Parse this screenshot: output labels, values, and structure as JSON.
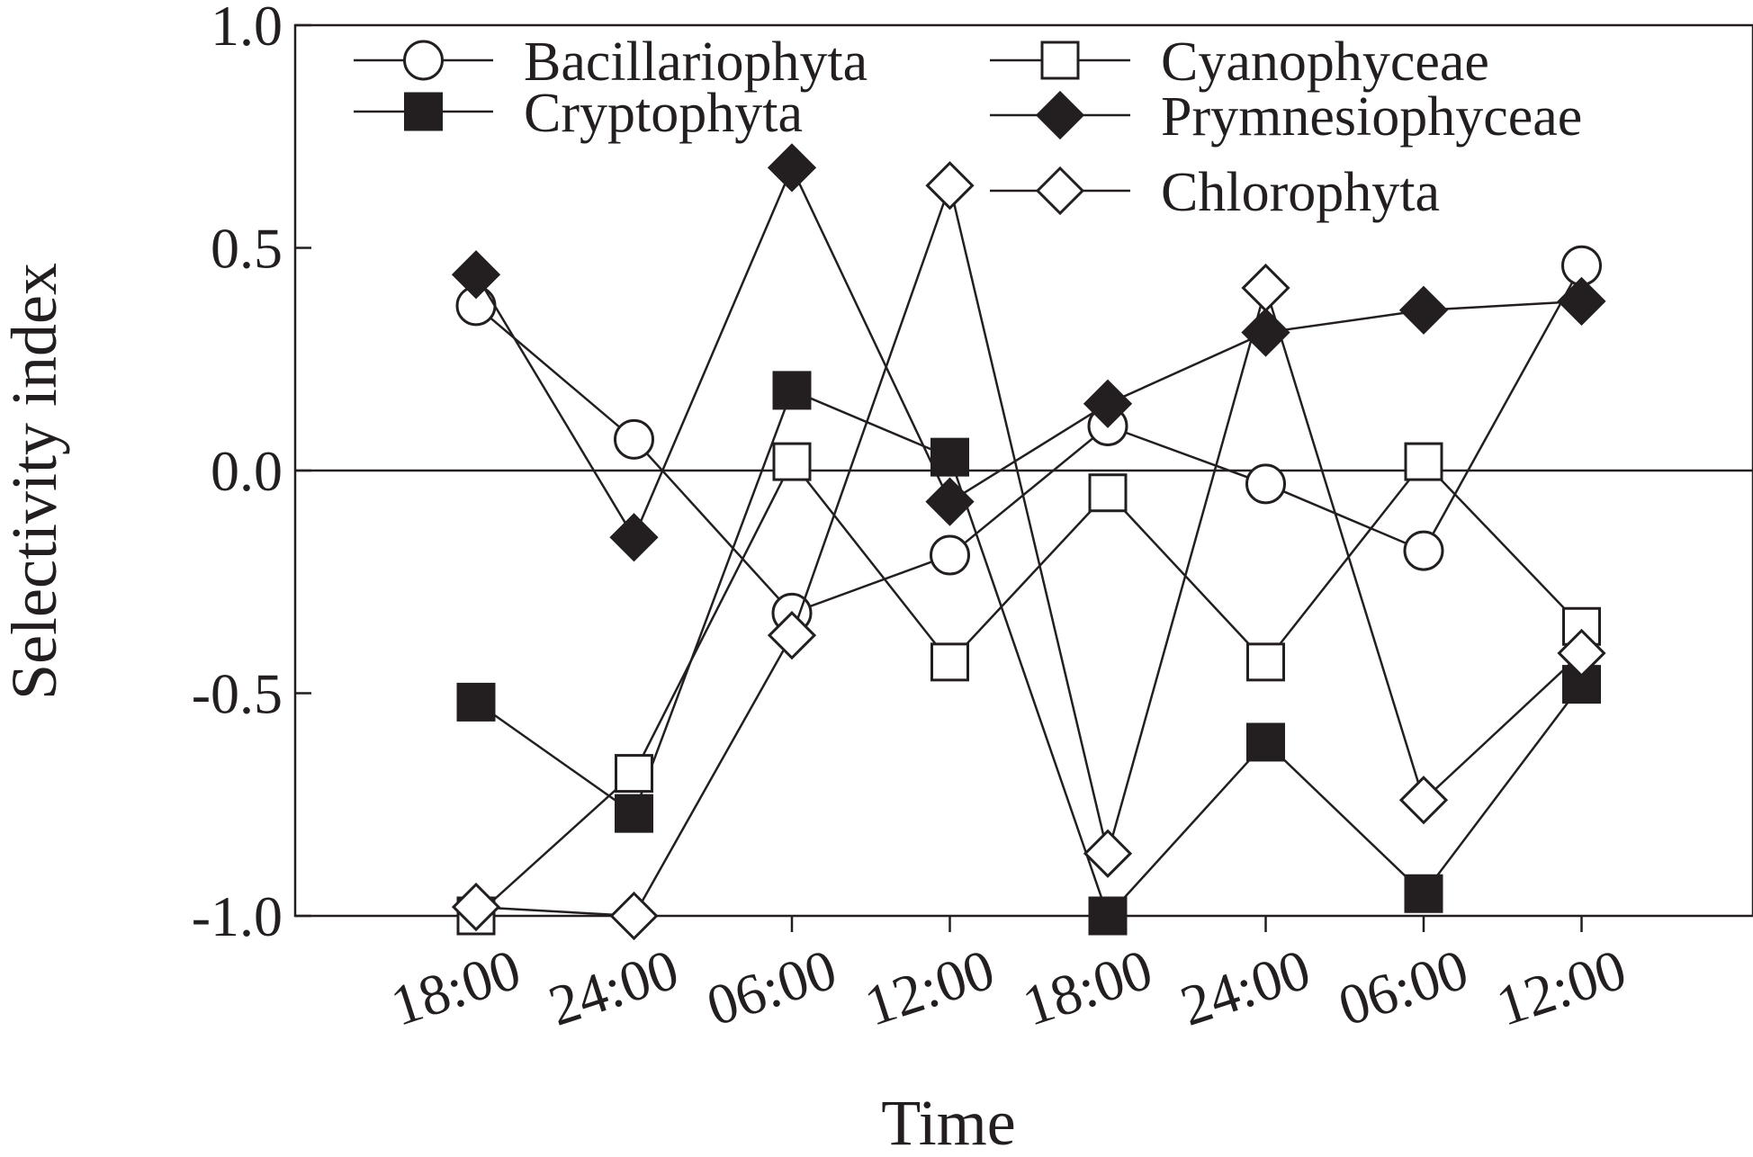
{
  "chart_data": {
    "type": "line",
    "title": "",
    "xlabel": "Time",
    "ylabel": "Selectivity index",
    "categories": [
      "18:00",
      "24:00",
      "06:00",
      "12:00",
      "18:00",
      "24:00",
      "06:00",
      "12:00"
    ],
    "ylim": [
      -1.0,
      1.0
    ],
    "yticks": [
      "-1.0",
      "-0.5",
      "0.0",
      "0.5",
      "1.0"
    ],
    "reference_line": 0.0,
    "grid": false,
    "legend_position": "top",
    "series": [
      {
        "name": "Bacillariophyta",
        "marker": "circle",
        "fill": "open",
        "values": [
          0.37,
          0.07,
          -0.32,
          -0.19,
          0.1,
          -0.03,
          -0.18,
          0.46
        ]
      },
      {
        "name": "Cryptophyta",
        "marker": "square",
        "fill": "filled",
        "values": [
          -0.52,
          -0.77,
          0.18,
          0.03,
          -1.0,
          -0.61,
          -0.95,
          -0.48
        ]
      },
      {
        "name": "Cyanophyceae",
        "marker": "square",
        "fill": "open",
        "values": [
          -1.0,
          -0.68,
          0.02,
          -0.43,
          -0.05,
          -0.43,
          0.02,
          -0.35
        ]
      },
      {
        "name": "Prymnesiophyceae",
        "marker": "diamond",
        "fill": "filled",
        "values": [
          0.44,
          -0.15,
          0.68,
          -0.07,
          0.15,
          0.31,
          0.36,
          0.38
        ]
      },
      {
        "name": "Chlorophyta",
        "marker": "diamond",
        "fill": "open",
        "values": [
          -0.98,
          -1.0,
          -0.37,
          0.64,
          -0.86,
          0.41,
          -0.74,
          -0.41
        ]
      }
    ]
  }
}
